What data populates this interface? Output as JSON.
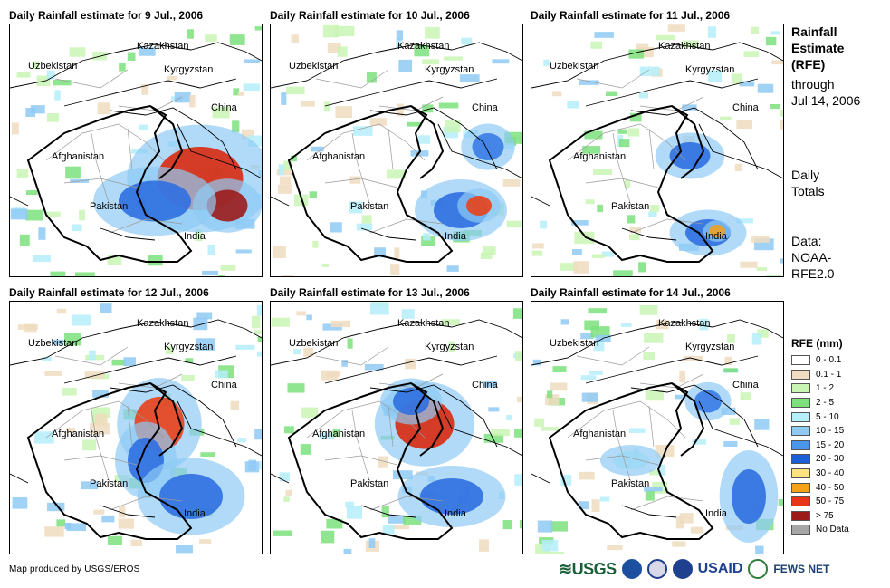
{
  "panels": [
    {
      "title": "Daily Rainfall estimate for 9 Jul., 2006",
      "storm": [
        [
          210,
          170,
          95,
          70,
          "#d82a10"
        ],
        [
          240,
          200,
          45,
          35,
          "#9b1b1b"
        ],
        [
          160,
          195,
          80,
          45,
          "#2f6fe0"
        ]
      ]
    },
    {
      "title": "Daily Rainfall estimate for 10 Jul., 2006",
      "storm": [
        [
          210,
          205,
          60,
          40,
          "#2f6fe0"
        ],
        [
          230,
          200,
          28,
          22,
          "#e8401a"
        ],
        [
          240,
          135,
          35,
          30,
          "#3a7be6"
        ]
      ]
    },
    {
      "title": "Daily Rainfall estimate for 11 Jul., 2006",
      "storm": [
        [
          175,
          145,
          45,
          30,
          "#2f6fe0"
        ],
        [
          195,
          230,
          50,
          30,
          "#2f6fe0"
        ],
        [
          205,
          228,
          18,
          14,
          "#f0a020"
        ]
      ]
    },
    {
      "title": "Daily Rainfall estimate for 12 Jul., 2006",
      "storm": [
        [
          165,
          135,
          55,
          60,
          "#e8401a"
        ],
        [
          150,
          175,
          40,
          50,
          "#2f6fe0"
        ],
        [
          200,
          215,
          70,
          50,
          "#2f6fe0"
        ]
      ]
    },
    {
      "title": "Daily Rainfall estimate for 13 Jul., 2006",
      "storm": [
        [
          170,
          135,
          65,
          55,
          "#d82a10"
        ],
        [
          155,
          110,
          40,
          30,
          "#2f6fe0"
        ],
        [
          200,
          215,
          70,
          40,
          "#2f6fe0"
        ]
      ]
    },
    {
      "title": "Daily Rainfall estimate for 14 Jul., 2006",
      "storm": [
        [
          240,
          215,
          38,
          60,
          "#2f6fe0"
        ],
        [
          195,
          110,
          30,
          25,
          "#3a7be6"
        ],
        [
          110,
          175,
          40,
          20,
          "#9ed8f5"
        ]
      ]
    }
  ],
  "map_labels": {
    "kazakhstan": "Kazakhstan",
    "uzbekistan": "Uzbekistan",
    "kyrgyzstan": "Kyrgyzstan",
    "china": "China",
    "afghanistan": "Afghanistan",
    "pakistan": "Pakistan",
    "india": "India"
  },
  "sidebar": {
    "title_lines": [
      "Rainfall",
      "Estimate",
      "(RFE)"
    ],
    "through_lines": [
      "through",
      "Jul 14, 2006"
    ],
    "totals_lines": [
      "Daily",
      "Totals"
    ],
    "data_lines": [
      "Data:",
      "NOAA-",
      "RFE2.0"
    ]
  },
  "legend": {
    "title": "RFE (mm)",
    "items": [
      {
        "label": "0 - 0.1",
        "color": "#ffffff"
      },
      {
        "label": "0.1 - 1",
        "color": "#f0dcc0"
      },
      {
        "label": "1 - 2",
        "color": "#c9f5b4"
      },
      {
        "label": "2 - 5",
        "color": "#7de07d"
      },
      {
        "label": "5 - 10",
        "color": "#b5effa"
      },
      {
        "label": "10 - 15",
        "color": "#8fcaf5"
      },
      {
        "label": "15 - 20",
        "color": "#4a95ea"
      },
      {
        "label": "20 - 30",
        "color": "#1c5fd6"
      },
      {
        "label": "30 - 40",
        "color": "#fae27e"
      },
      {
        "label": "40 - 50",
        "color": "#f5a21b"
      },
      {
        "label": "50 - 75",
        "color": "#e8351a"
      },
      {
        "label": "> 75",
        "color": "#9b1b1b"
      },
      {
        "label": "No Data",
        "color": "#a6a6a6"
      }
    ]
  },
  "credit": "Map produced by USGS/EROS",
  "logos": {
    "usgs": "USGS",
    "usaid": "USAID",
    "fews": "FEWS NET"
  }
}
